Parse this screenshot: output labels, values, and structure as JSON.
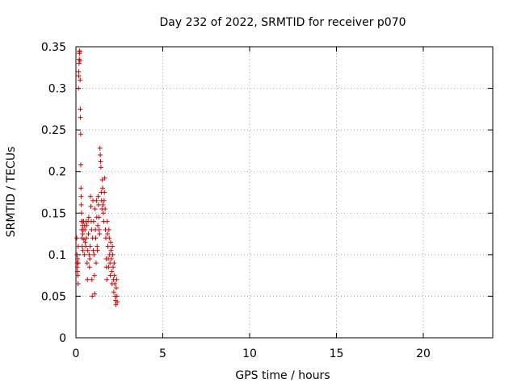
{
  "chart_data": {
    "type": "scatter",
    "title": "Day 232 of 2022, SRMTID for receiver p070",
    "xlabel": "GPS time / hours",
    "ylabel": "SRMTID / TECUs",
    "xlim": [
      0,
      24
    ],
    "ylim": [
      0,
      0.35
    ],
    "xticks": [
      0,
      5,
      10,
      15,
      20
    ],
    "xtick_labels": [
      "0",
      "5",
      "10",
      "15",
      "20"
    ],
    "yticks": [
      0,
      0.05,
      0.1,
      0.15,
      0.2,
      0.25,
      0.3,
      0.35
    ],
    "ytick_labels": [
      "0",
      "0.05",
      "0.1",
      "0.15",
      "0.2",
      "0.25",
      "0.3",
      "0.35"
    ],
    "grid": true,
    "marker": "+",
    "color": "#d00000",
    "series": [
      {
        "name": "p070",
        "points": [
          [
            0.05,
            0.12
          ],
          [
            0.06,
            0.1
          ],
          [
            0.07,
            0.09
          ],
          [
            0.08,
            0.085
          ],
          [
            0.09,
            0.08
          ],
          [
            0.1,
            0.095
          ],
          [
            0.11,
            0.075
          ],
          [
            0.12,
            0.065
          ],
          [
            0.13,
            0.11
          ],
          [
            0.14,
            0.09
          ],
          [
            0.15,
            0.3
          ],
          [
            0.16,
            0.32
          ],
          [
            0.17,
            0.315
          ],
          [
            0.18,
            0.33
          ],
          [
            0.19,
            0.335
          ],
          [
            0.2,
            0.342
          ],
          [
            0.21,
            0.345
          ],
          [
            0.22,
            0.344
          ],
          [
            0.23,
            0.333
          ],
          [
            0.24,
            0.31
          ],
          [
            0.25,
            0.275
          ],
          [
            0.26,
            0.265
          ],
          [
            0.27,
            0.245
          ],
          [
            0.28,
            0.208
          ],
          [
            0.29,
            0.18
          ],
          [
            0.3,
            0.17
          ],
          [
            0.31,
            0.16
          ],
          [
            0.32,
            0.15
          ],
          [
            0.33,
            0.14
          ],
          [
            0.34,
            0.13
          ],
          [
            0.35,
            0.12
          ],
          [
            0.36,
            0.11
          ],
          [
            0.37,
            0.14
          ],
          [
            0.38,
            0.135
          ],
          [
            0.39,
            0.125
          ],
          [
            0.4,
            0.105
          ],
          [
            0.42,
            0.13
          ],
          [
            0.44,
            0.14
          ],
          [
            0.46,
            0.118
          ],
          [
            0.48,
            0.1
          ],
          [
            0.5,
            0.135
          ],
          [
            0.52,
            0.13
          ],
          [
            0.54,
            0.115
          ],
          [
            0.56,
            0.11
          ],
          [
            0.58,
            0.14
          ],
          [
            0.6,
            0.12
          ],
          [
            0.62,
            0.135
          ],
          [
            0.64,
            0.09
          ],
          [
            0.66,
            0.07
          ],
          [
            0.68,
            0.105
          ],
          [
            0.7,
            0.14
          ],
          [
            0.72,
            0.125
          ],
          [
            0.74,
            0.145
          ],
          [
            0.76,
            0.1
          ],
          [
            0.78,
            0.085
          ],
          [
            0.8,
            0.095
          ],
          [
            0.82,
            0.11
          ],
          [
            0.84,
            0.17
          ],
          [
            0.86,
            0.158
          ],
          [
            0.88,
            0.14
          ],
          [
            0.9,
            0.13
          ],
          [
            0.92,
            0.07
          ],
          [
            0.94,
            0.05
          ],
          [
            0.96,
            0.12
          ],
          [
            0.98,
            0.165
          ],
          [
            1.0,
            0.105
          ],
          [
            1.02,
            0.14
          ],
          [
            1.04,
            0.1
          ],
          [
            1.06,
            0.075
          ],
          [
            1.08,
            0.053
          ],
          [
            1.1,
            0.155
          ],
          [
            1.12,
            0.13
          ],
          [
            1.14,
            0.12
          ],
          [
            1.16,
            0.09
          ],
          [
            1.18,
            0.165
          ],
          [
            1.2,
            0.145
          ],
          [
            1.22,
            0.11
          ],
          [
            1.24,
            0.105
          ],
          [
            1.26,
            0.135
          ],
          [
            1.28,
            0.17
          ],
          [
            1.3,
            0.16
          ],
          [
            1.32,
            0.145
          ],
          [
            1.34,
            0.13
          ],
          [
            1.36,
            0.125
          ],
          [
            1.38,
            0.228
          ],
          [
            1.4,
            0.22
          ],
          [
            1.42,
            0.212
          ],
          [
            1.44,
            0.205
          ],
          [
            1.46,
            0.175
          ],
          [
            1.48,
            0.165
          ],
          [
            1.5,
            0.155
          ],
          [
            1.52,
            0.19
          ],
          [
            1.54,
            0.18
          ],
          [
            1.56,
            0.16
          ],
          [
            1.58,
            0.15
          ],
          [
            1.6,
            0.14
          ],
          [
            1.62,
            0.165
          ],
          [
            1.64,
            0.175
          ],
          [
            1.66,
            0.192
          ],
          [
            1.68,
            0.155
          ],
          [
            1.7,
            0.13
          ],
          [
            1.72,
            0.12
          ],
          [
            1.74,
            0.095
          ],
          [
            1.76,
            0.085
          ],
          [
            1.78,
            0.07
          ],
          [
            1.8,
            0.14
          ],
          [
            1.82,
            0.125
          ],
          [
            1.84,
            0.11
          ],
          [
            1.86,
            0.095
          ],
          [
            1.88,
            0.085
          ],
          [
            1.9,
            0.13
          ],
          [
            1.92,
            0.12
          ],
          [
            1.94,
            0.1
          ],
          [
            1.96,
            0.09
          ],
          [
            1.98,
            0.075
          ],
          [
            2.0,
            0.115
          ],
          [
            2.02,
            0.105
          ],
          [
            2.04,
            0.095
          ],
          [
            2.06,
            0.08
          ],
          [
            2.08,
            0.065
          ],
          [
            2.1,
            0.11
          ],
          [
            2.12,
            0.1
          ],
          [
            2.14,
            0.085
          ],
          [
            2.16,
            0.07
          ],
          [
            2.18,
            0.055
          ],
          [
            2.2,
            0.09
          ],
          [
            2.22,
            0.075
          ],
          [
            2.24,
            0.065
          ],
          [
            2.26,
            0.05
          ],
          [
            2.28,
            0.045
          ],
          [
            2.3,
            0.04
          ],
          [
            2.32,
            0.06
          ],
          [
            2.34,
            0.07
          ],
          [
            2.36,
            0.05
          ],
          [
            2.38,
            0.043
          ]
        ]
      }
    ]
  }
}
